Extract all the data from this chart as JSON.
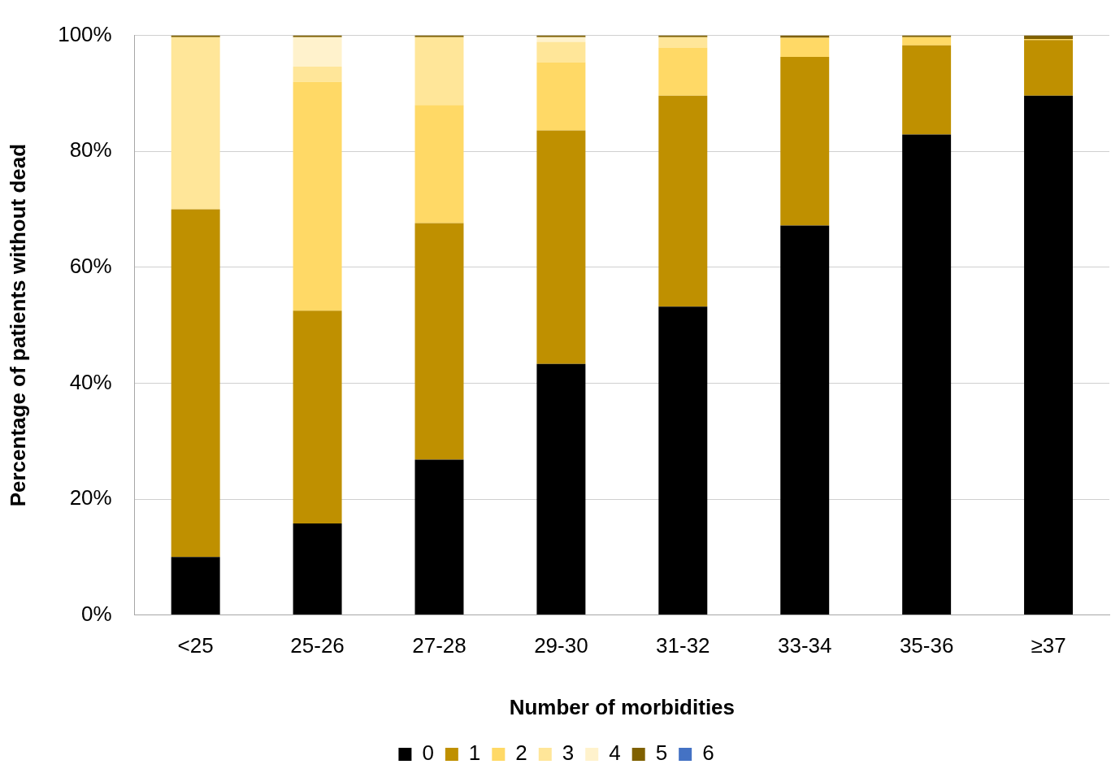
{
  "chart_data": {
    "type": "bar",
    "stacked": true,
    "xlabel": "Number of morbidities",
    "ylabel": "Percentage of patients without dead",
    "categories": [
      "<25",
      "25-26",
      "27-28",
      "29-30",
      "31-32",
      "33-34",
      "35-36",
      "≥37"
    ],
    "series": [
      {
        "name": "0",
        "color": "#000000",
        "values": [
          10,
          15.8,
          26.8,
          43.3,
          53.2,
          67.2,
          82.9,
          89.6
        ]
      },
      {
        "name": "1",
        "color": "#bf9000",
        "values": [
          60,
          36.7,
          40.8,
          40.3,
          36.4,
          29.1,
          15.4,
          9.6
        ]
      },
      {
        "name": "2",
        "color": "#ffd966",
        "values": [
          0,
          39.5,
          20.4,
          11.8,
          8.3,
          3.3,
          1.4,
          0.2
        ]
      },
      {
        "name": "3",
        "color": "#ffe699",
        "values": [
          29.7,
          2.6,
          11.7,
          3.5,
          1.8,
          0,
          0,
          0
        ]
      },
      {
        "name": "4",
        "color": "#fff2cc",
        "values": [
          0,
          5.1,
          0,
          0.8,
          0,
          0,
          0,
          0
        ]
      },
      {
        "name": "5",
        "color": "#7f6000",
        "values": [
          0.3,
          0.3,
          0.3,
          0.3,
          0.3,
          0.4,
          0.3,
          0.6
        ]
      },
      {
        "name": "6",
        "color": "#4472c4",
        "values": [
          0,
          0,
          0,
          0,
          0,
          0,
          0,
          0
        ]
      }
    ],
    "ylim": [
      0,
      100
    ],
    "yticks": [
      {
        "value": 0,
        "label": "0%"
      },
      {
        "value": 20,
        "label": "20%"
      },
      {
        "value": 40,
        "label": "40%"
      },
      {
        "value": 60,
        "label": "60%"
      },
      {
        "value": 80,
        "label": "80%"
      },
      {
        "value": 100,
        "label": "100%"
      }
    ],
    "grid": "y",
    "legend": "bottom"
  }
}
